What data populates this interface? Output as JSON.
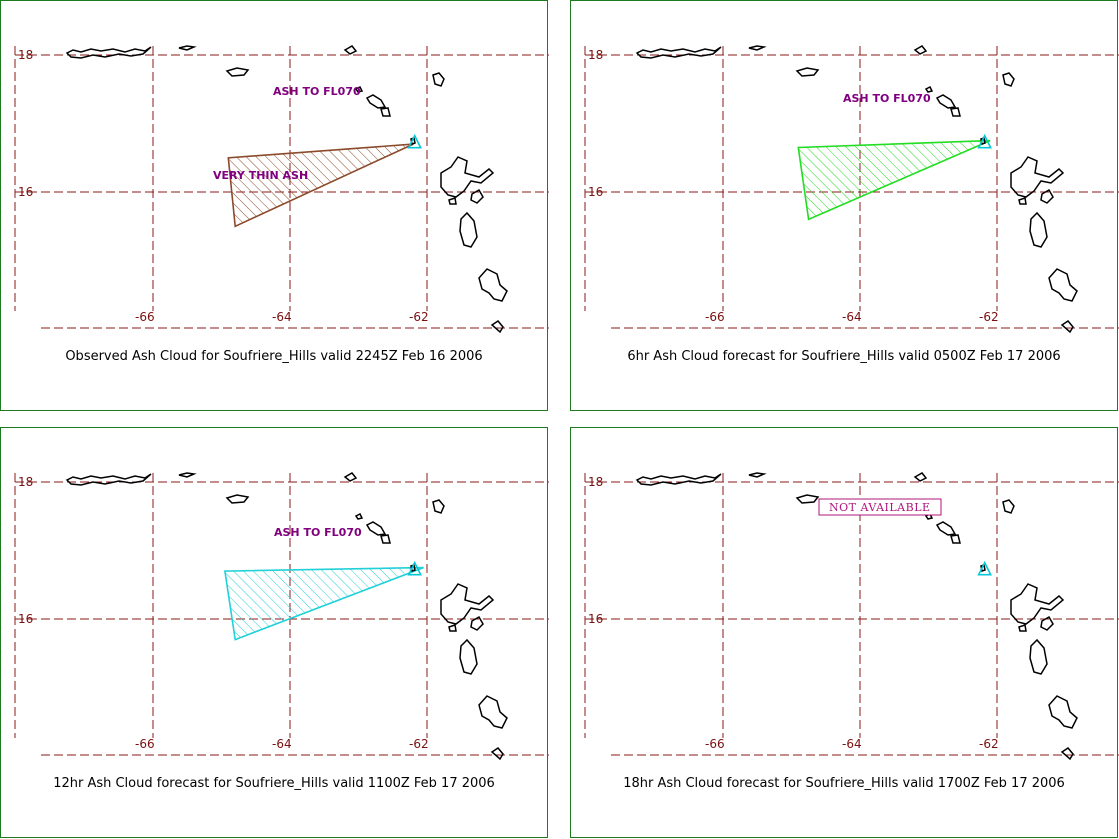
{
  "panels": [
    {
      "caption": "Observed Ash Cloud for Soufriere_Hills valid 2245Z Feb 16 2006",
      "labels": [
        "ASH TO FL070",
        "VERY THIN ASH"
      ],
      "cloud": {
        "color": "#8b4a2b",
        "polygon": [
          [
            -62.2,
            16.7
          ],
          [
            -64.9,
            16.5
          ],
          [
            -64.8,
            15.5
          ]
        ]
      },
      "not_available": ""
    },
    {
      "caption": "6hr Ash Cloud forecast for Soufriere_Hills valid 0500Z Feb 17 2006",
      "labels": [
        "ASH TO FL070"
      ],
      "cloud": {
        "color": "#22dd22",
        "polygon": [
          [
            -62.1,
            16.75
          ],
          [
            -64.9,
            16.65
          ],
          [
            -64.75,
            15.6
          ]
        ]
      },
      "not_available": ""
    },
    {
      "caption": "12hr Ash Cloud forecast for Soufriere_Hills valid 1100Z Feb 17 2006",
      "labels": [
        "ASH TO FL070"
      ],
      "cloud": {
        "color": "#22d0d8",
        "polygon": [
          [
            -62.05,
            16.75
          ],
          [
            -64.95,
            16.7
          ],
          [
            -64.8,
            15.7
          ]
        ]
      },
      "not_available": ""
    },
    {
      "caption": "18hr Ash Cloud forecast for Soufriere_Hills valid 1700Z Feb 17 2006",
      "labels": [],
      "cloud": null,
      "not_available": "NOT AVAILABLE"
    }
  ],
  "map": {
    "lat_ticks": [
      "18",
      "16"
    ],
    "lon_ticks": [
      "-66",
      "-64",
      "-62"
    ],
    "lat_values": [
      18,
      16
    ],
    "lon_values": [
      -66,
      -64,
      -62
    ],
    "grid_color": "#8b1a1a",
    "coast_color": "#000000",
    "volcano_color": "#00c8d8",
    "volcano_name": "Soufriere_Hills",
    "volcano_lonlat": [
      -62.18,
      16.72
    ]
  }
}
